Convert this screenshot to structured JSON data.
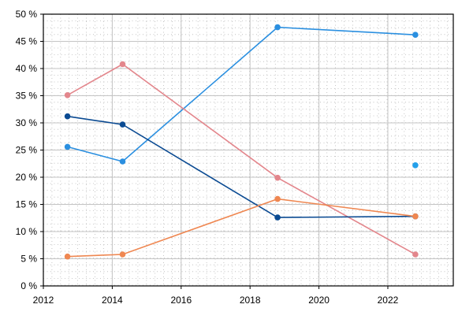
{
  "chart_data": {
    "type": "line",
    "title": "",
    "xlabel": "",
    "ylabel": "",
    "xlim": [
      2012.0,
      2023.9
    ],
    "ylim": [
      0,
      50
    ],
    "x_ticks": [
      2012,
      2014,
      2016,
      2018,
      2020,
      2022
    ],
    "x_tick_labels": [
      "2012",
      "2014",
      "2016",
      "2018",
      "2020",
      "2022"
    ],
    "y_ticks": [
      0,
      5,
      10,
      15,
      20,
      25,
      30,
      35,
      40,
      45,
      50
    ],
    "y_tick_labels": [
      "0 %",
      "5 %",
      "10 %",
      "15 %",
      "20 %",
      "25 %",
      "30 %",
      "35 %",
      "40 %",
      "45 %",
      "50 %"
    ],
    "grid": true,
    "legend": "none",
    "series": [
      {
        "color": "#2a8fe0",
        "points": [
          [
            2012.7,
            25.6
          ],
          [
            2014.3,
            22.9
          ],
          [
            2018.8,
            47.6
          ],
          [
            2022.8,
            46.2
          ]
        ]
      },
      {
        "color": "#e3868c",
        "points": [
          [
            2012.7,
            35.1
          ],
          [
            2014.3,
            40.8
          ],
          [
            2018.8,
            19.9
          ],
          [
            2022.8,
            5.8
          ]
        ]
      },
      {
        "color": "#0a4a92",
        "points": [
          [
            2012.7,
            31.2
          ],
          [
            2014.3,
            29.7
          ],
          [
            2018.8,
            12.6
          ],
          [
            2022.8,
            12.8
          ]
        ]
      },
      {
        "color": "#ef8751",
        "points": [
          [
            2012.7,
            5.4
          ],
          [
            2014.3,
            5.8
          ],
          [
            2018.8,
            16.0
          ],
          [
            2022.8,
            12.8
          ]
        ]
      },
      {
        "color": "#25a0ea",
        "points": [
          [
            2022.8,
            22.2
          ]
        ]
      }
    ]
  }
}
